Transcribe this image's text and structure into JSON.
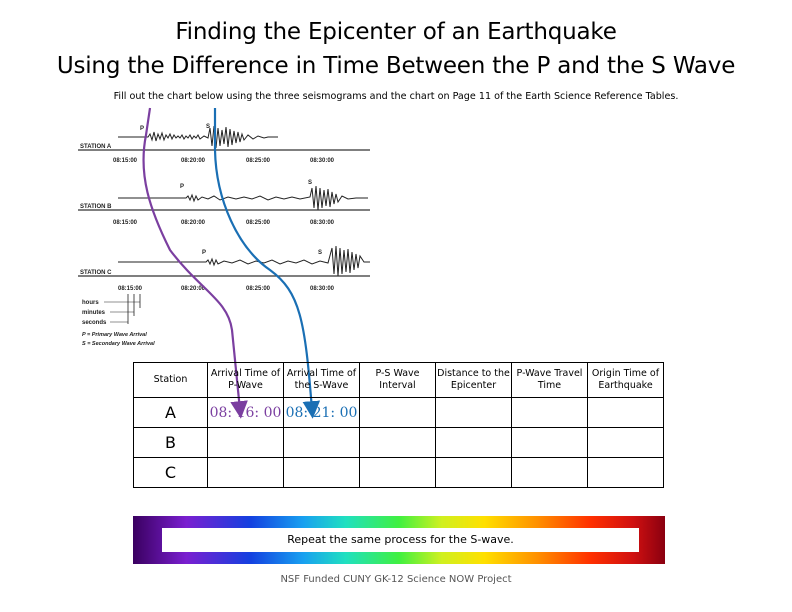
{
  "header": {
    "title_line1": "Finding the Epicenter of an Earthquake",
    "title_line2": "Using the Difference in Time Between the P and the S Wave",
    "instructions": "Fill out the chart below using the three seismograms and the chart on Page 11 of the Earth Science Reference Tables."
  },
  "seismogram": {
    "stations": [
      "STATION A",
      "STATION B",
      "STATION C"
    ],
    "times": [
      "08:15:00",
      "08:20:00",
      "08:25:00",
      "08:30:00"
    ],
    "legend": [
      "hours",
      "minutes",
      "seconds",
      "P = Primary Wave Arrival",
      "S = Secondary Wave Arrival"
    ],
    "p_mark": "P",
    "s_mark": "S",
    "arrow_colors": {
      "p": "#7b3fa0",
      "s": "#1a6fb4"
    }
  },
  "table": {
    "headers": [
      "Station",
      "Arrival Time of P-Wave",
      "Arrival Time of the S-Wave",
      "P-S Wave Interval",
      "Distance to the Epicenter",
      "P-Wave Travel Time",
      "Origin Time of Earthquake"
    ],
    "rows": [
      {
        "station": "A",
        "p_arrival": "08: 16: 00",
        "s_arrival": "08: 21: 00",
        "ps_interval": "",
        "distance": "",
        "travel_time": "",
        "origin_time": ""
      },
      {
        "station": "B",
        "p_arrival": "",
        "s_arrival": "",
        "ps_interval": "",
        "distance": "",
        "travel_time": "",
        "origin_time": ""
      },
      {
        "station": "C",
        "p_arrival": "",
        "s_arrival": "",
        "ps_interval": "",
        "distance": "",
        "travel_time": "",
        "origin_time": ""
      }
    ]
  },
  "banner": {
    "text": "Repeat the same process for the S-wave."
  },
  "footer": {
    "text": "NSF Funded CUNY GK-12 Science NOW Project"
  }
}
